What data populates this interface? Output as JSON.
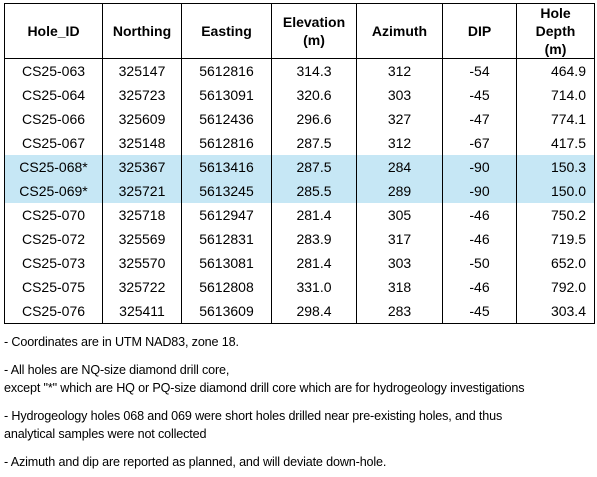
{
  "table": {
    "headers": [
      {
        "line1": "Hole_ID",
        "line2": ""
      },
      {
        "line1": "Northing",
        "line2": ""
      },
      {
        "line1": "Easting",
        "line2": ""
      },
      {
        "line1": "Elevation",
        "line2": "(m)"
      },
      {
        "line1": "Azimuth",
        "line2": ""
      },
      {
        "line1": "DIP",
        "line2": ""
      },
      {
        "line1": "Hole Depth",
        "line2": "(m)"
      }
    ],
    "rows": [
      {
        "hole_id": "CS25-063",
        "northing": "325147",
        "easting": "5612816",
        "elevation": "314.3",
        "azimuth": "312",
        "dip": "-54",
        "depth": "464.9",
        "highlight": false
      },
      {
        "hole_id": "CS25-064",
        "northing": "325723",
        "easting": "5613091",
        "elevation": "320.6",
        "azimuth": "303",
        "dip": "-45",
        "depth": "714.0",
        "highlight": false
      },
      {
        "hole_id": "CS25-066",
        "northing": "325609",
        "easting": "5612436",
        "elevation": "296.6",
        "azimuth": "327",
        "dip": "-47",
        "depth": "774.1",
        "highlight": false
      },
      {
        "hole_id": "CS25-067",
        "northing": "325148",
        "easting": "5612816",
        "elevation": "287.5",
        "azimuth": "312",
        "dip": "-67",
        "depth": "417.5",
        "highlight": false
      },
      {
        "hole_id": "CS25-068*",
        "northing": "325367",
        "easting": "5613416",
        "elevation": "287.5",
        "azimuth": "284",
        "dip": "-90",
        "depth": "150.3",
        "highlight": true
      },
      {
        "hole_id": "CS25-069*",
        "northing": "325721",
        "easting": "5613245",
        "elevation": "285.5",
        "azimuth": "289",
        "dip": "-90",
        "depth": "150.0",
        "highlight": true
      },
      {
        "hole_id": "CS25-070",
        "northing": "325718",
        "easting": "5612947",
        "elevation": "281.4",
        "azimuth": "305",
        "dip": "-46",
        "depth": "750.2",
        "highlight": false
      },
      {
        "hole_id": "CS25-072",
        "northing": "325569",
        "easting": "5612831",
        "elevation": "283.9",
        "azimuth": "317",
        "dip": "-46",
        "depth": "719.5",
        "highlight": false
      },
      {
        "hole_id": "CS25-073",
        "northing": "325570",
        "easting": "5613081",
        "elevation": "281.4",
        "azimuth": "303",
        "dip": "-50",
        "depth": "652.0",
        "highlight": false
      },
      {
        "hole_id": "CS25-075",
        "northing": "325722",
        "easting": "5612808",
        "elevation": "331.0",
        "azimuth": "318",
        "dip": "-46",
        "depth": "792.0",
        "highlight": false
      },
      {
        "hole_id": "CS25-076",
        "northing": "325411",
        "easting": "5613609",
        "elevation": "298.4",
        "azimuth": "283",
        "dip": "-45",
        "depth": "303.4",
        "highlight": false
      }
    ]
  },
  "notes": {
    "coords": "- Coordinates are in UTM NAD83, zone 18.",
    "nq_line1": "- All holes are NQ-size diamond drill core,",
    "nq_line2": "except \"*\" which are HQ or PQ-size diamond drill core which are for hydrogeology investigations",
    "hydro_line1": "- Hydrogeology holes 068 and 069 were short holes drilled near pre-existing holes, and thus",
    "hydro_line2": "analytical samples were not collected",
    "azimuth": "- Azimuth and dip are reported as planned, and will deviate down-hole."
  },
  "colors": {
    "highlight_row": "#c6e7f5",
    "border": "#000000"
  }
}
